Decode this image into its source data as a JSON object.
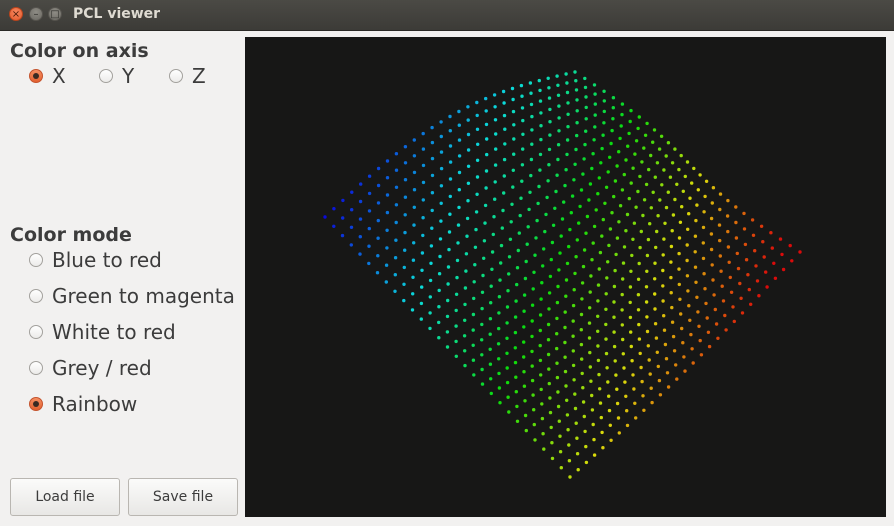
{
  "window": {
    "title": "PCL viewer",
    "close_glyph": "×",
    "minimize_glyph": "–",
    "maximize_glyph": "□"
  },
  "axis": {
    "title": "Color on axis",
    "options": [
      {
        "label": "X",
        "checked": true
      },
      {
        "label": "Y",
        "checked": false
      },
      {
        "label": "Z",
        "checked": false
      }
    ]
  },
  "mode": {
    "title": "Color mode",
    "options": [
      {
        "label": "Blue to red",
        "checked": false
      },
      {
        "label": "Green to magenta",
        "checked": false
      },
      {
        "label": "White to red",
        "checked": false
      },
      {
        "label": "Grey / red",
        "checked": false
      },
      {
        "label": "Rainbow",
        "checked": true
      }
    ]
  },
  "buttons": {
    "load": "Load file",
    "save": "Save file"
  },
  "viewer": {
    "background": "#171716",
    "colormap": "rainbow"
  }
}
